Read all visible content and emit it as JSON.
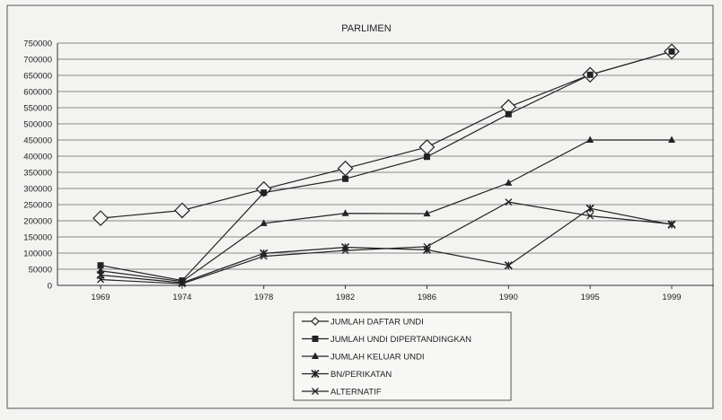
{
  "chart_data": {
    "type": "line",
    "title": "PARLIMEN",
    "categories": [
      "1969",
      "1974",
      "1978",
      "1982",
      "1986",
      "1990",
      "1995",
      "1999"
    ],
    "ylim": [
      0,
      750000
    ],
    "yticks": [
      0,
      50000,
      100000,
      150000,
      200000,
      250000,
      300000,
      350000,
      400000,
      450000,
      500000,
      550000,
      600000,
      650000,
      700000,
      750000
    ],
    "grid": true,
    "legend_position": "bottom",
    "series": [
      {
        "name": "JUMLAH DAFTAR UNDI",
        "marker": "diamond",
        "values": [
          208000,
          232000,
          298000,
          362000,
          428000,
          552000,
          652000,
          724000
        ]
      },
      {
        "name": "JUMLAH UNDI DIPERTANDINGKAN",
        "marker": "square",
        "values": [
          62000,
          15000,
          287000,
          330000,
          398000,
          530000,
          652000,
          724000
        ]
      },
      {
        "name": "JUMLAH KELUAR UNDI",
        "marker": "triangle",
        "values": [
          45000,
          12000,
          192000,
          223000,
          222000,
          317000,
          450000,
          450000
        ]
      },
      {
        "name": "BN/PERIKATAN",
        "marker": "star",
        "values": [
          32000,
          8000,
          99000,
          118000,
          110000,
          62000,
          238000,
          188000
        ]
      },
      {
        "name": "ALTERNATIF",
        "marker": "x",
        "values": [
          18000,
          5000,
          90000,
          108000,
          120000,
          258000,
          215000,
          190000
        ]
      }
    ]
  }
}
